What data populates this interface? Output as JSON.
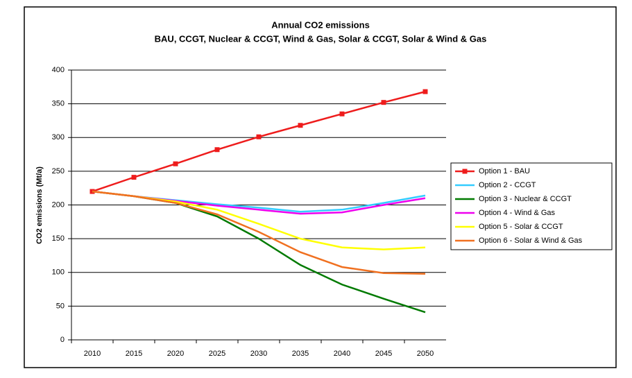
{
  "chart_data": {
    "type": "line",
    "title": "Annual CO2 emissions",
    "subtitle": "BAU, CCGT, Nuclear & CCGT, Wind & Gas, Solar & CCGT, Solar & Wind & Gas",
    "y_label": "CO2 emissions (Mt/a)",
    "categories": [
      "2010",
      "2015",
      "2020",
      "2025",
      "2030",
      "2035",
      "2040",
      "2045",
      "2050"
    ],
    "series": [
      {
        "name": "Option 1 - BAU",
        "color": "#ee1c1c",
        "marker": "square",
        "values": [
          220,
          241,
          261,
          282,
          301,
          318,
          335,
          352,
          368
        ]
      },
      {
        "name": "Option 2 - CCGT",
        "color": "#33ccff",
        "values": [
          220,
          213,
          207,
          201,
          196,
          190,
          193,
          203,
          214
        ]
      },
      {
        "name": "Option 3 - Nuclear & CCGT",
        "color": "#007a00",
        "values": [
          220,
          213,
          203,
          183,
          150,
          111,
          82,
          61,
          41
        ]
      },
      {
        "name": "Option 4 - Wind & Gas",
        "color": "#ee00ee",
        "values": [
          220,
          213,
          206,
          199,
          193,
          187,
          189,
          200,
          210
        ]
      },
      {
        "name": "Option 5 - Solar & CCGT",
        "color": "#ffff00",
        "values": [
          220,
          213,
          205,
          193,
          172,
          150,
          137,
          134,
          137
        ]
      },
      {
        "name": "Option 6 - Solar & Wind & Gas",
        "color": "#f07020",
        "values": [
          220,
          213,
          203,
          186,
          160,
          130,
          108,
          99,
          98
        ]
      }
    ],
    "ylim": [
      0,
      400
    ],
    "yticks": [
      0,
      50,
      100,
      150,
      200,
      250,
      300,
      350,
      400
    ],
    "grid": true,
    "legend": "right"
  }
}
